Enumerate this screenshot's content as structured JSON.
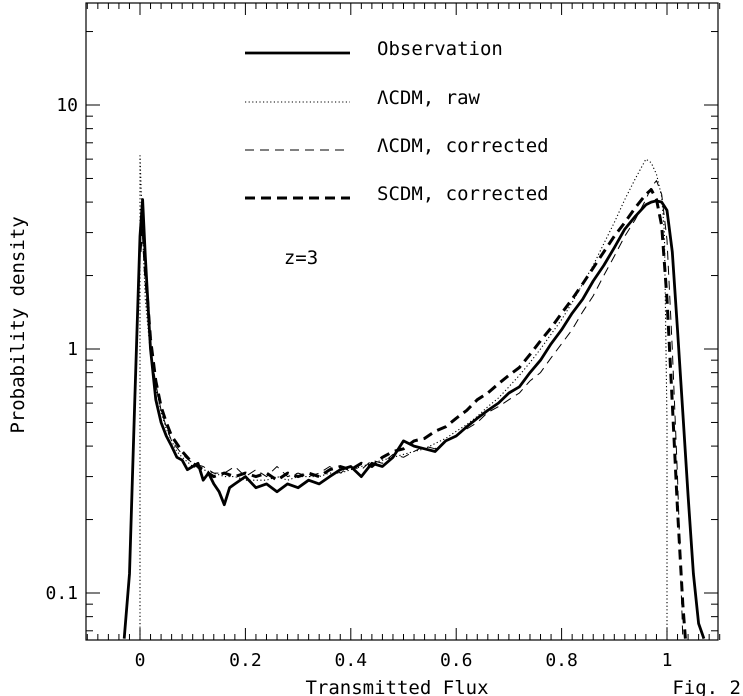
{
  "chart_data": {
    "type": "line",
    "title": "",
    "xlabel": "Transmitted Flux",
    "ylabel": "Probability density",
    "xlim": [
      -0.1,
      1.1
    ],
    "ylim": [
      0.065,
      23
    ],
    "yscale": "log",
    "grid": false,
    "legend_position": "top-center",
    "x_ticks": [
      0,
      0.2,
      0.4,
      0.6,
      0.8,
      1
    ],
    "x_tick_labels": [
      "0",
      "0.2",
      "0.4",
      "0.6",
      "0.8",
      "1"
    ],
    "y_ticks": [
      0.1,
      1,
      10
    ],
    "y_tick_labels": [
      "0.1",
      "1",
      "10"
    ],
    "annotations": [
      "z=3",
      "Fig. 2"
    ],
    "series": [
      {
        "name": "Observation",
        "style": "thick-solid",
        "x": [
          -0.03,
          -0.02,
          -0.01,
          0.0,
          0.005,
          0.01,
          0.02,
          0.03,
          0.04,
          0.05,
          0.06,
          0.07,
          0.08,
          0.09,
          0.1,
          0.11,
          0.12,
          0.13,
          0.14,
          0.15,
          0.16,
          0.17,
          0.18,
          0.2,
          0.22,
          0.24,
          0.26,
          0.28,
          0.3,
          0.32,
          0.34,
          0.36,
          0.38,
          0.4,
          0.42,
          0.44,
          0.46,
          0.48,
          0.5,
          0.52,
          0.54,
          0.56,
          0.58,
          0.6,
          0.62,
          0.64,
          0.66,
          0.68,
          0.7,
          0.72,
          0.74,
          0.76,
          0.78,
          0.8,
          0.82,
          0.84,
          0.86,
          0.88,
          0.9,
          0.92,
          0.94,
          0.96,
          0.97,
          0.98,
          0.99,
          1.0,
          1.01,
          1.02,
          1.03,
          1.04,
          1.05,
          1.06,
          1.07
        ],
        "y": [
          0.065,
          0.12,
          0.6,
          2.9,
          4.1,
          2.4,
          1.0,
          0.62,
          0.5,
          0.44,
          0.4,
          0.36,
          0.35,
          0.32,
          0.33,
          0.34,
          0.29,
          0.31,
          0.28,
          0.26,
          0.23,
          0.27,
          0.28,
          0.3,
          0.27,
          0.28,
          0.26,
          0.28,
          0.27,
          0.29,
          0.28,
          0.3,
          0.32,
          0.33,
          0.3,
          0.34,
          0.33,
          0.36,
          0.42,
          0.4,
          0.39,
          0.38,
          0.42,
          0.44,
          0.48,
          0.52,
          0.56,
          0.6,
          0.66,
          0.7,
          0.8,
          0.9,
          1.05,
          1.2,
          1.4,
          1.6,
          1.9,
          2.2,
          2.6,
          3.1,
          3.5,
          3.9,
          4.0,
          4.05,
          4.0,
          3.7,
          2.5,
          1.2,
          0.55,
          0.25,
          0.12,
          0.075,
          0.065
        ]
      },
      {
        "name": "ΛCDM, raw",
        "style": "dotted",
        "x": [
          0.0,
          0.0,
          0.005,
          0.01,
          0.02,
          0.03,
          0.04,
          0.05,
          0.06,
          0.07,
          0.08,
          0.1,
          0.12,
          0.14,
          0.16,
          0.18,
          0.2,
          0.22,
          0.24,
          0.26,
          0.28,
          0.3,
          0.32,
          0.34,
          0.36,
          0.38,
          0.4,
          0.42,
          0.44,
          0.46,
          0.48,
          0.5,
          0.52,
          0.54,
          0.56,
          0.58,
          0.6,
          0.62,
          0.64,
          0.66,
          0.68,
          0.7,
          0.72,
          0.74,
          0.76,
          0.78,
          0.8,
          0.82,
          0.84,
          0.86,
          0.88,
          0.9,
          0.92,
          0.94,
          0.96,
          0.97,
          0.98,
          0.99,
          0.995,
          1.0,
          1.0
        ],
        "y": [
          0.065,
          6.2,
          3.0,
          1.6,
          0.95,
          0.7,
          0.55,
          0.47,
          0.42,
          0.38,
          0.36,
          0.33,
          0.32,
          0.31,
          0.3,
          0.3,
          0.29,
          0.29,
          0.29,
          0.3,
          0.29,
          0.3,
          0.3,
          0.3,
          0.31,
          0.31,
          0.32,
          0.33,
          0.34,
          0.35,
          0.36,
          0.37,
          0.38,
          0.39,
          0.41,
          0.43,
          0.46,
          0.49,
          0.53,
          0.58,
          0.63,
          0.7,
          0.78,
          0.88,
          1.0,
          1.15,
          1.32,
          1.55,
          1.85,
          2.2,
          2.7,
          3.3,
          4.1,
          5.0,
          6.0,
          5.8,
          5.2,
          4.2,
          3.0,
          0.5,
          0.065
        ]
      },
      {
        "name": "ΛCDM, corrected",
        "style": "thin-dashed",
        "x": [
          0.0,
          0.005,
          0.01,
          0.02,
          0.03,
          0.04,
          0.05,
          0.06,
          0.08,
          0.1,
          0.12,
          0.14,
          0.16,
          0.18,
          0.2,
          0.22,
          0.24,
          0.26,
          0.28,
          0.3,
          0.32,
          0.34,
          0.36,
          0.38,
          0.4,
          0.42,
          0.44,
          0.46,
          0.48,
          0.5,
          0.52,
          0.54,
          0.56,
          0.58,
          0.6,
          0.62,
          0.64,
          0.66,
          0.68,
          0.7,
          0.72,
          0.74,
          0.76,
          0.78,
          0.8,
          0.82,
          0.84,
          0.86,
          0.88,
          0.9,
          0.92,
          0.94,
          0.96,
          0.97,
          0.98,
          0.99,
          1.0,
          1.01,
          1.02,
          1.03
        ],
        "y": [
          2.6,
          3.6,
          2.2,
          1.0,
          0.72,
          0.56,
          0.48,
          0.42,
          0.37,
          0.34,
          0.33,
          0.31,
          0.31,
          0.33,
          0.3,
          0.32,
          0.3,
          0.33,
          0.3,
          0.31,
          0.3,
          0.31,
          0.33,
          0.31,
          0.33,
          0.32,
          0.35,
          0.34,
          0.37,
          0.36,
          0.38,
          0.4,
          0.39,
          0.42,
          0.44,
          0.47,
          0.5,
          0.55,
          0.58,
          0.62,
          0.66,
          0.74,
          0.8,
          0.92,
          1.05,
          1.2,
          1.42,
          1.65,
          2.0,
          2.4,
          2.9,
          3.4,
          4.1,
          4.6,
          4.9,
          4.3,
          2.8,
          1.0,
          0.3,
          0.065
        ]
      },
      {
        "name": "SCDM, corrected",
        "style": "thick-dashed",
        "x": [
          0.0,
          0.005,
          0.01,
          0.02,
          0.03,
          0.04,
          0.05,
          0.06,
          0.08,
          0.1,
          0.12,
          0.14,
          0.16,
          0.18,
          0.2,
          0.22,
          0.24,
          0.26,
          0.28,
          0.3,
          0.32,
          0.34,
          0.36,
          0.38,
          0.4,
          0.42,
          0.44,
          0.46,
          0.48,
          0.5,
          0.52,
          0.54,
          0.56,
          0.58,
          0.6,
          0.62,
          0.64,
          0.66,
          0.68,
          0.7,
          0.72,
          0.74,
          0.76,
          0.78,
          0.8,
          0.82,
          0.84,
          0.86,
          0.88,
          0.9,
          0.92,
          0.94,
          0.96,
          0.97,
          0.98,
          0.99,
          1.0,
          1.01,
          1.02,
          1.03,
          1.035
        ],
        "y": [
          2.5,
          3.4,
          2.1,
          1.1,
          0.74,
          0.58,
          0.5,
          0.44,
          0.38,
          0.34,
          0.32,
          0.3,
          0.31,
          0.3,
          0.31,
          0.3,
          0.31,
          0.29,
          0.31,
          0.3,
          0.31,
          0.3,
          0.32,
          0.33,
          0.32,
          0.34,
          0.33,
          0.36,
          0.38,
          0.39,
          0.42,
          0.43,
          0.46,
          0.48,
          0.52,
          0.56,
          0.62,
          0.66,
          0.72,
          0.78,
          0.84,
          0.95,
          1.08,
          1.22,
          1.4,
          1.6,
          1.85,
          2.15,
          2.5,
          2.9,
          3.3,
          3.8,
          4.3,
          4.5,
          4.1,
          3.2,
          1.6,
          0.6,
          0.22,
          0.09,
          0.065
        ]
      }
    ]
  }
}
